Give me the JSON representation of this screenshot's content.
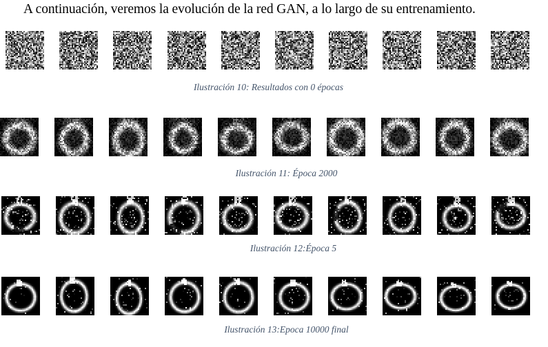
{
  "intro_text": "A continuación, veremos la evolución de la red GAN, a lo largo de su entrenamiento.",
  "figures": [
    {
      "caption": "Ilustración 10: Resultados con 0 épocas",
      "stage": "noise",
      "image_count": 10
    },
    {
      "caption": "Ilustración 11: Época 2000",
      "stage": "blurry-ring",
      "image_count": 10
    },
    {
      "caption": "Ilustración 12:Época 5",
      "stage": "rough-apple",
      "image_count": 10
    },
    {
      "caption": "Ilustración 13:Epoca 10000 final",
      "stage": "clean-apple",
      "image_count": 10
    }
  ],
  "colors": {
    "caption": "#44546a",
    "text": "#000000"
  }
}
